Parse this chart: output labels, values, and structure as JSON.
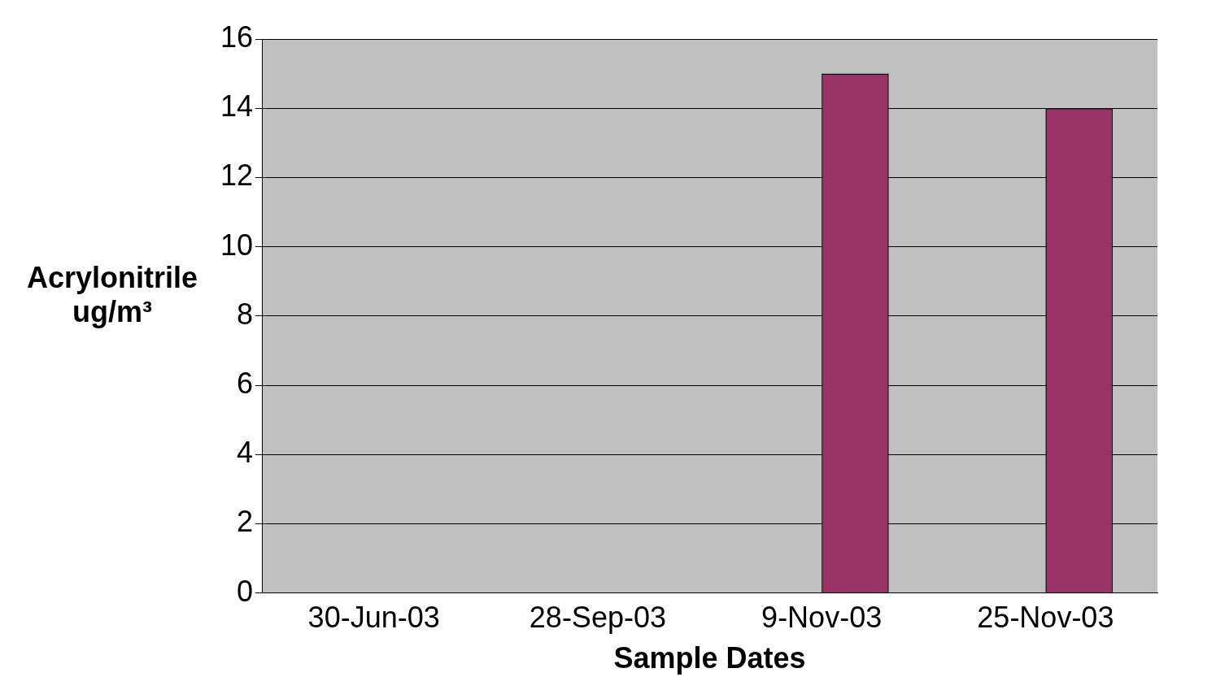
{
  "chart_data": {
    "type": "bar",
    "xlabel": "Sample Dates",
    "ylabel": "Acrylonitrile ug/m³",
    "categories": [
      "30-Jun-03",
      "28-Sep-03",
      "9-Nov-03",
      "25-Nov-03"
    ],
    "series": [
      {
        "color": "#6666cc",
        "values": [
          0,
          0,
          0,
          0
        ]
      },
      {
        "color": "#993366",
        "values": [
          0,
          0,
          15,
          14
        ]
      }
    ],
    "ylim": [
      0,
      16
    ],
    "yticks": [
      0,
      2,
      4,
      6,
      8,
      10,
      12,
      14,
      16
    ],
    "grid": "y"
  }
}
